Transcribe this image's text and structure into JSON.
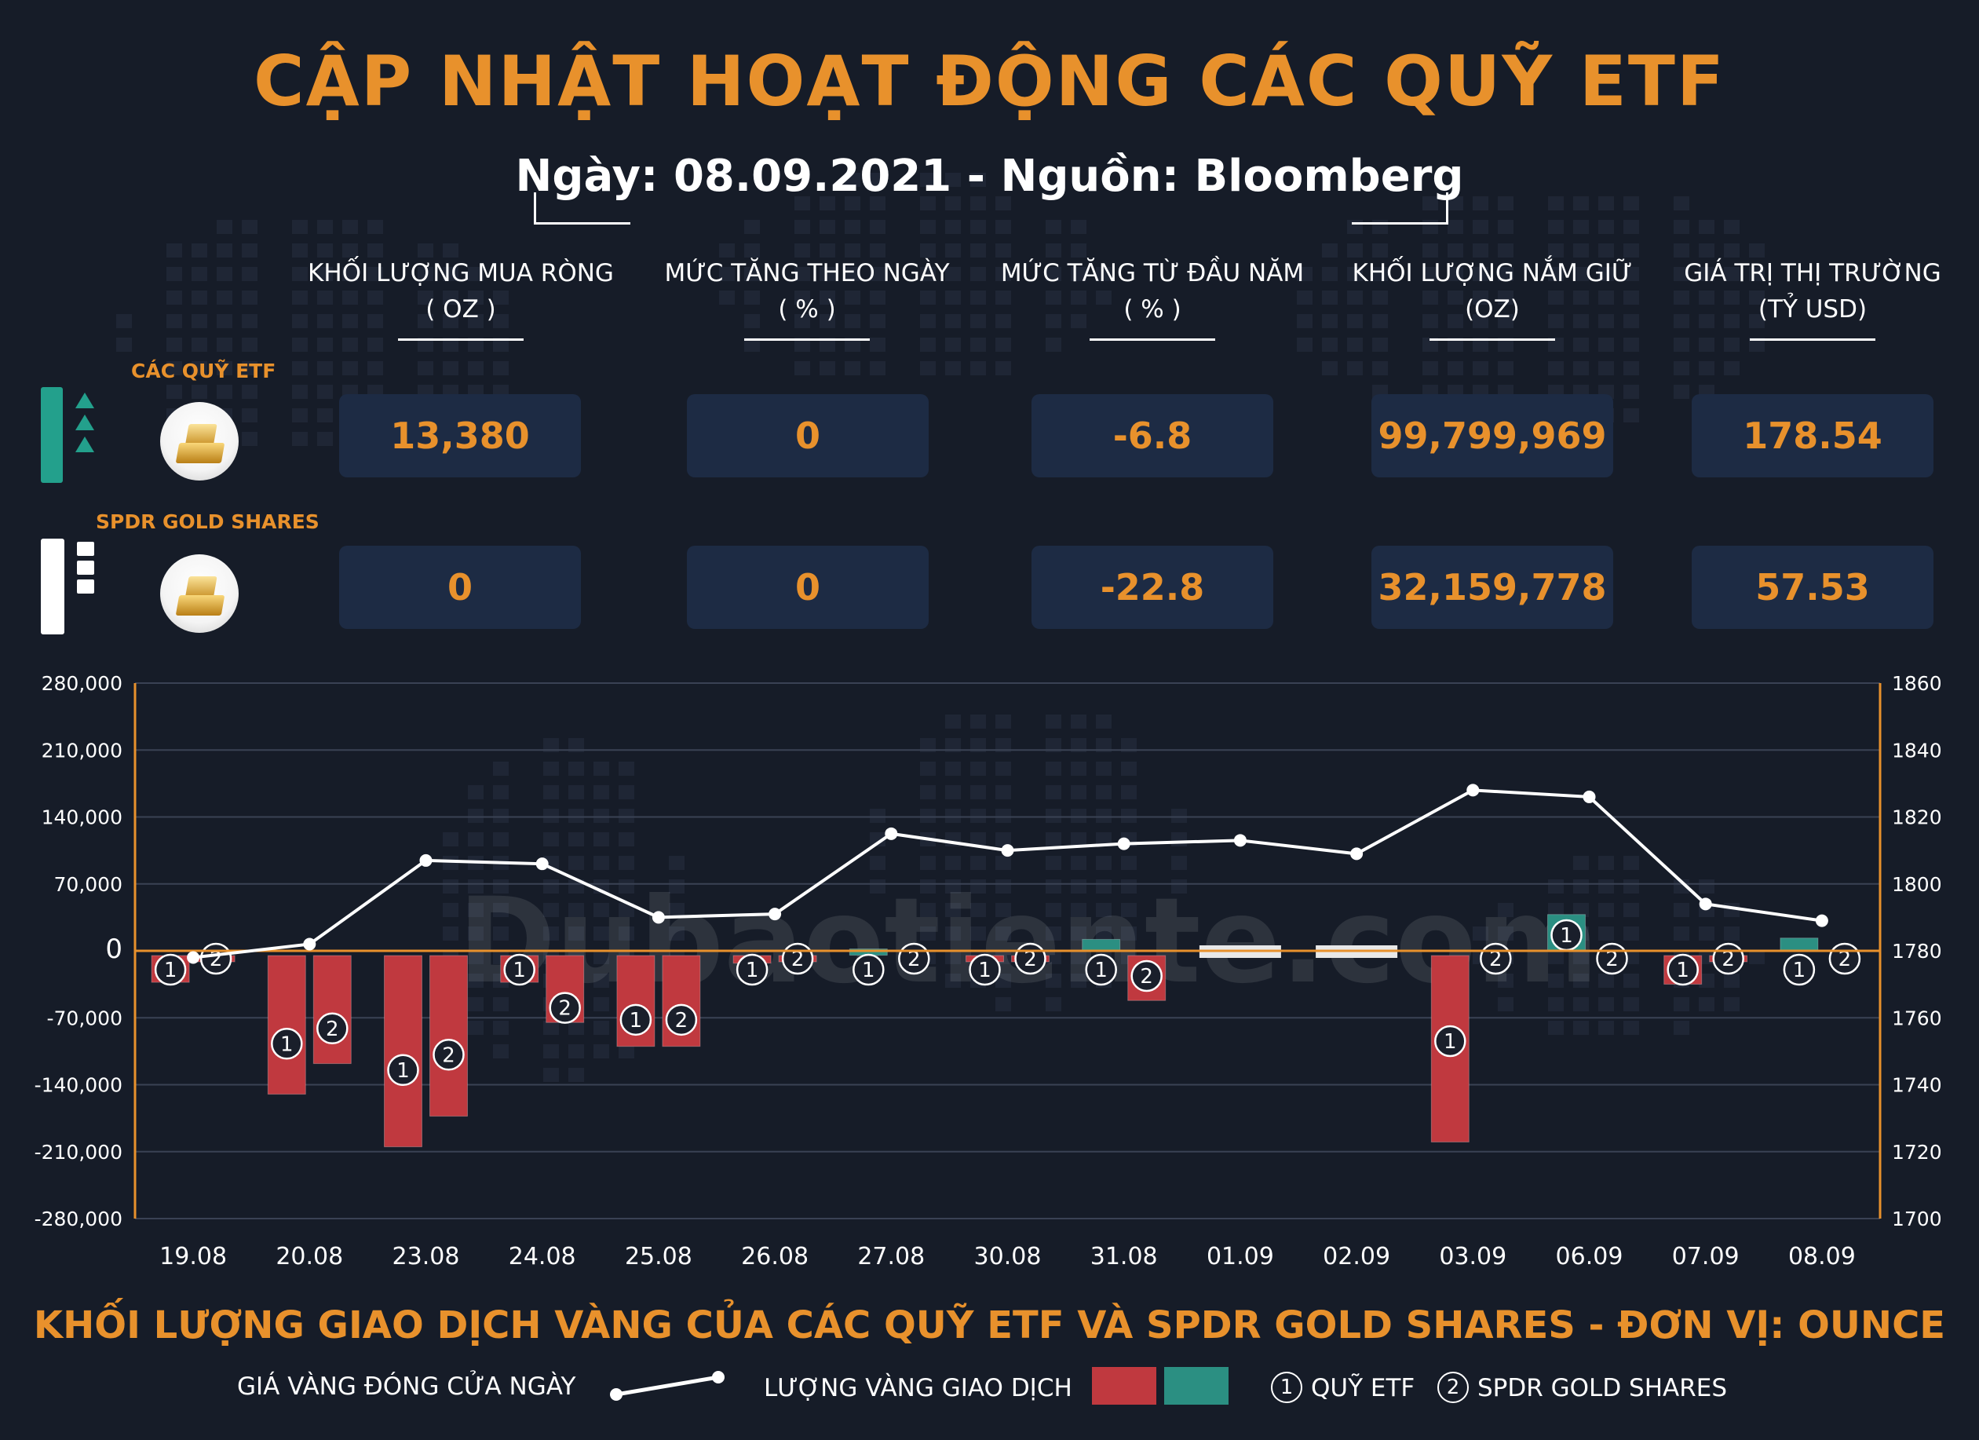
{
  "header": {
    "title": "CẬP NHẬT HOẠT ĐỘNG CÁC QUỸ ETF",
    "subtitle": "Ngày: 08.09.2021 - Nguồn: Bloomberg"
  },
  "table": {
    "columns": [
      {
        "line1": "KHỐI LƯỢNG MUA RÒNG",
        "line2": "( OZ )"
      },
      {
        "line1": "MỨC TĂNG THEO NGÀY",
        "line2": "( % )"
      },
      {
        "line1": "MỨC TĂNG TỪ ĐẦU NĂM",
        "line2": "( % )"
      },
      {
        "line1": "KHỐI LƯỢNG NẮM GIỮ",
        "line2": "(OZ)"
      },
      {
        "line1": "GIÁ TRỊ THỊ TRƯỜNG",
        "line2": "(TỶ USD)"
      }
    ],
    "rows": [
      {
        "label": "CÁC QUỸ ETF",
        "values": [
          "13,380",
          "0",
          "-6.8",
          "99,799,969",
          "178.54"
        ]
      },
      {
        "label": "SPDR GOLD SHARES",
        "values": [
          "0",
          "0",
          "-22.8",
          "32,159,778",
          "57.53"
        ]
      }
    ]
  },
  "chart_data": {
    "type": "bar",
    "categories": [
      "19.08",
      "20.08",
      "23.08",
      "24.08",
      "25.08",
      "26.08",
      "27.08",
      "30.08",
      "31.08",
      "01.09",
      "02.09",
      "03.09",
      "06.09",
      "07.09",
      "08.09"
    ],
    "series": [
      {
        "name": "QUỸ ETF",
        "type": "bar",
        "axis": "left",
        "values": [
          -28000,
          -145000,
          -200000,
          -28000,
          -95000,
          -8000,
          2000,
          -5000,
          12000,
          -3000,
          -3000,
          -195000,
          38000,
          -30000,
          13380
        ]
      },
      {
        "name": "SPDR GOLD SHARES",
        "type": "bar",
        "axis": "left",
        "values": [
          -5000,
          -113000,
          -168000,
          -70000,
          -95000,
          -5000,
          0,
          -3000,
          -47000,
          -3000,
          -3000,
          0,
          0,
          -3000,
          0
        ]
      },
      {
        "name": "GIÁ VÀNG ĐÓNG CỬA NGÀY",
        "type": "line",
        "axis": "right",
        "values": [
          1778,
          1782,
          1807,
          1806,
          1790,
          1791,
          1815,
          1810,
          1812,
          1813,
          1809,
          1828,
          1826,
          1794,
          1789
        ]
      }
    ],
    "y_left": {
      "ticks": [
        "280,000",
        "210,000",
        "140,000",
        "70,000",
        "0",
        "-70,000",
        "-140,000",
        "-210,000",
        "-280,000"
      ],
      "range": [
        -280000,
        280000
      ]
    },
    "y_right": {
      "ticks": [
        "1860",
        "1840",
        "1820",
        "1800",
        "1780",
        "1760",
        "1740",
        "1720",
        "1700"
      ],
      "range": [
        1700,
        1860
      ]
    },
    "colors": {
      "negative": "#c0393f",
      "positive": "#2b8f82",
      "line": "#ffffff",
      "zero_line": "#e8912c",
      "axis": "#e8912c"
    },
    "watermark": "Dubaotiente.com"
  },
  "legend": {
    "title": "KHỐI LƯỢNG GIAO DỊCH VÀNG CỦA CÁC QUỸ ETF VÀ SPDR GOLD SHARES - ĐƠN VỊ: OUNCE",
    "line_label": "GIÁ VÀNG ĐÓNG CỬA NGÀY",
    "bar_label": "LƯỢNG VÀNG GIAO DỊCH",
    "marker1_num": "1",
    "marker1_label": "QUỸ ETF",
    "marker2_num": "2",
    "marker2_label": "SPDR GOLD SHARES"
  }
}
